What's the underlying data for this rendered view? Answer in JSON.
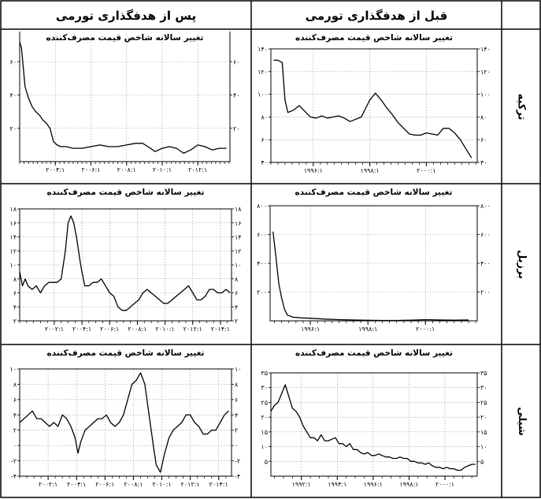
{
  "header": {
    "after": "پس از هدفگذاری تورمی",
    "before": "قبل از هدفگذاری تورمی"
  },
  "rows": [
    "ترکیه",
    "برزیل",
    "شیلی"
  ],
  "chart_data": [
    {
      "id": "turkey-after",
      "type": "line",
      "title": "تغییر سالانه شاخص قیمت مصرف‌کننده",
      "ylim": [
        0,
        80
      ],
      "yticks": [
        20,
        40,
        60,
        80
      ],
      "ytick_labels": [
        "۲۰",
        "۴۰",
        "۶۰",
        "۸۰"
      ],
      "xlim": [
        2002.0,
        2013.8
      ],
      "xticks": [
        2004,
        2006,
        2008,
        2010,
        2012
      ],
      "xtick_minor_step": 0.25,
      "xtick_labels": [
        "۲۰۰۴:۱",
        "۲۰۰۶:۱",
        "۲۰۰۸:۱",
        "۲۰۱۰:۱",
        "۲۰۱۲:۱"
      ],
      "x": [
        2002.0,
        2002.1,
        2002.3,
        2002.5,
        2002.7,
        2002.9,
        2003.1,
        2003.3,
        2003.5,
        2003.7,
        2003.9,
        2004.1,
        2004.3,
        2004.6,
        2005.0,
        2005.5,
        2006.0,
        2006.5,
        2007.0,
        2007.5,
        2008.0,
        2008.5,
        2008.9,
        2009.2,
        2009.6,
        2010.0,
        2010.4,
        2010.8,
        2011.2,
        2011.6,
        2012.0,
        2012.4,
        2012.8,
        2013.2,
        2013.6
      ],
      "values": [
        72,
        68,
        45,
        38,
        33,
        30,
        28,
        25,
        23,
        20,
        12,
        10,
        9,
        9,
        8,
        8,
        9,
        10,
        9,
        9,
        10,
        11,
        11,
        9,
        6,
        8,
        9,
        8,
        5,
        7,
        10,
        9,
        7,
        8,
        8
      ]
    },
    {
      "id": "turkey-before",
      "type": "line",
      "title": "تغییر سالانه شاخص قیمت مصرف‌کننده",
      "ylim": [
        40,
        140
      ],
      "yticks": [
        40,
        60,
        80,
        100,
        120,
        140
      ],
      "ytick_labels": [
        "۴۰",
        "۶۰",
        "۸۰",
        "۱۰۰",
        "۱۲۰",
        "۱۴۰"
      ],
      "xlim": [
        1994.5,
        2001.8
      ],
      "xticks": [
        1996,
        1998,
        2000
      ],
      "xtick_minor_step": 0.25,
      "xtick_labels": [
        "۱۹۹۶:۱",
        "۱۹۹۸:۱",
        "۲۰۰۰:۱"
      ],
      "x": [
        1994.6,
        1994.75,
        1994.9,
        1995.0,
        1995.1,
        1995.3,
        1995.5,
        1995.7,
        1995.9,
        1996.1,
        1996.3,
        1996.5,
        1996.7,
        1996.9,
        1997.1,
        1997.3,
        1997.5,
        1997.7,
        1997.9,
        1998.0,
        1998.2,
        1998.4,
        1998.6,
        1998.8,
        1999.0,
        1999.2,
        1999.4,
        1999.6,
        1999.8,
        2000.0,
        2000.2,
        2000.4,
        2000.6,
        2000.8,
        2001.0,
        2001.2,
        2001.4,
        2001.6
      ],
      "values": [
        130,
        130,
        128,
        95,
        84,
        86,
        90,
        85,
        80,
        79,
        81,
        79,
        80,
        81,
        79,
        76,
        78,
        80,
        90,
        95,
        101,
        95,
        88,
        82,
        75,
        70,
        65,
        64,
        64,
        66,
        65,
        64,
        70,
        70,
        66,
        60,
        52,
        44
      ]
    },
    {
      "id": "brazil-after",
      "type": "line",
      "title": "تغییر سالانه شاخص قیمت مصرف‌کننده",
      "ylim": [
        2,
        18
      ],
      "yticks": [
        2,
        4,
        6,
        8,
        10,
        12,
        14,
        16,
        18
      ],
      "ytick_labels": [
        "۲",
        "۴",
        "۶",
        "۸",
        "۱۰",
        "۱۲",
        "۱۴",
        "۱۶",
        "۱۸"
      ],
      "xlim": [
        1999.5,
        2014.8
      ],
      "xticks": [
        2002,
        2004,
        2006,
        2008,
        2010,
        2012,
        2014
      ],
      "xtick_minor_step": 0.5,
      "xtick_labels": [
        "۲۰۰۲:۱",
        "۲۰۰۴:۱",
        "۲۰۰۶:۱",
        "۲۰۰۸:۱",
        "۲۰۱۰:۱",
        "۲۰۱۲:۱",
        "۲۰۱۴:۱"
      ],
      "x": [
        1999.5,
        1999.7,
        1999.9,
        2000.1,
        2000.4,
        2000.7,
        2001.0,
        2001.3,
        2001.6,
        2001.9,
        2002.2,
        2002.5,
        2002.8,
        2003.0,
        2003.2,
        2003.4,
        2003.6,
        2003.9,
        2004.2,
        2004.5,
        2004.8,
        2005.1,
        2005.4,
        2005.7,
        2006.0,
        2006.3,
        2006.6,
        2006.9,
        2007.2,
        2007.5,
        2007.8,
        2008.1,
        2008.4,
        2008.7,
        2009.0,
        2009.3,
        2009.6,
        2009.9,
        2010.2,
        2010.5,
        2010.8,
        2011.1,
        2011.4,
        2011.7,
        2012.0,
        2012.3,
        2012.6,
        2012.9,
        2013.2,
        2013.5,
        2013.8,
        2014.1,
        2014.4,
        2014.7
      ],
      "values": [
        9,
        7,
        8,
        7,
        6.5,
        7,
        6,
        7,
        7.5,
        7.5,
        7.5,
        8,
        12,
        16,
        17,
        16,
        14,
        10,
        7,
        7,
        7.5,
        7.5,
        8,
        7,
        6,
        5.5,
        4,
        3.5,
        3.5,
        4,
        4.5,
        5,
        6,
        6.5,
        6,
        5.5,
        5,
        4.5,
        4.5,
        5,
        5.5,
        6,
        6.5,
        7,
        6,
        5,
        5,
        5.5,
        6.5,
        6.5,
        6,
        6,
        6.5,
        6
      ]
    },
    {
      "id": "brazil-before",
      "type": "line",
      "title": "تغییر سالانه شاخص قیمت مصرف‌کننده",
      "ylim": [
        0,
        800
      ],
      "yticks": [
        200,
        400,
        600,
        800
      ],
      "ytick_labels": [
        "۲۰۰",
        "۴۰۰",
        "۶۰۰",
        "۸۰۰"
      ],
      "xlim": [
        1994.6,
        2001.8
      ],
      "xticks": [
        1996,
        1998,
        2000
      ],
      "xtick_minor_step": 0.25,
      "xtick_labels": [
        "۱۹۹۶:۱",
        "۱۹۹۸:۱",
        "۲۰۰۰:۱"
      ],
      "x": [
        1994.7,
        1994.8,
        1994.9,
        1995.0,
        1995.1,
        1995.2,
        1995.4,
        1995.7,
        1996.0,
        1996.5,
        1997.0,
        1997.5,
        1998.0,
        1998.5,
        1999.0,
        1999.5,
        2000.0,
        2000.5,
        2001.0,
        2001.5
      ],
      "values": [
        620,
        450,
        260,
        160,
        80,
        40,
        25,
        20,
        18,
        12,
        8,
        6,
        4,
        3,
        3,
        5,
        8,
        6,
        5,
        6
      ]
    },
    {
      "id": "chile-after",
      "type": "line",
      "title": "تغییر سالانه شاخص قیمت مصرف‌کننده",
      "ylim": [
        -4,
        10
      ],
      "yticks": [
        -4,
        -2,
        0,
        2,
        4,
        6,
        8,
        10
      ],
      "ytick_labels": [
        "-۴",
        "-۲",
        "۰",
        "۲",
        "۴",
        "۶",
        "۸",
        "۱۰"
      ],
      "xlim": [
        2000.0,
        2014.9
      ],
      "xticks": [
        2002,
        2004,
        2006,
        2008,
        2010,
        2012,
        2014
      ],
      "xtick_minor_step": 0.5,
      "xtick_labels": [
        "۲۰۰۲:۱",
        "۲۰۰۴:۱",
        "۲۰۰۶:۱",
        "۲۰۰۸:۱",
        "۲۰۱۰:۱",
        "۲۰۱۲:۱",
        "۲۰۱۴:۱"
      ],
      "x": [
        2000.0,
        2000.3,
        2000.6,
        2000.9,
        2001.2,
        2001.5,
        2001.8,
        2002.1,
        2002.4,
        2002.7,
        2003.0,
        2003.3,
        2003.6,
        2003.9,
        2004.1,
        2004.3,
        2004.6,
        2004.9,
        2005.2,
        2005.5,
        2005.8,
        2006.1,
        2006.4,
        2006.7,
        2007.0,
        2007.3,
        2007.6,
        2007.9,
        2008.2,
        2008.5,
        2008.8,
        2009.1,
        2009.4,
        2009.6,
        2009.9,
        2010.2,
        2010.5,
        2010.8,
        2011.1,
        2011.4,
        2011.7,
        2012.0,
        2012.3,
        2012.6,
        2012.9,
        2013.2,
        2013.5,
        2013.8,
        2014.1,
        2014.4,
        2014.7
      ],
      "values": [
        3,
        3.5,
        4,
        4.5,
        3.5,
        3.5,
        3,
        2.5,
        3,
        2.5,
        4,
        3.5,
        2.5,
        1,
        -1,
        0.5,
        2,
        2.5,
        3,
        3.5,
        3.5,
        4,
        3,
        2.5,
        3,
        4,
        6,
        8,
        8.5,
        9.5,
        8,
        4,
        0,
        -2.5,
        -3.5,
        -1,
        1,
        2,
        2.5,
        3,
        4,
        4,
        3,
        2.5,
        1.5,
        1.5,
        2,
        2,
        3,
        4,
        4.5
      ]
    },
    {
      "id": "chile-before",
      "type": "line",
      "title": "تغییر سالانه شاخص قیمت مصرف‌کننده",
      "ylim": [
        0,
        35
      ],
      "yticks": [
        5,
        10,
        15,
        20,
        25,
        30,
        35
      ],
      "ytick_labels": [
        "۵",
        "۱۰",
        "۱۵",
        "۲۰",
        "۲۵",
        "۳۰",
        "۳۵"
      ],
      "xlim": [
        1990.3,
        2001.8
      ],
      "xticks": [
        1992,
        1994,
        1996,
        1998,
        2000
      ],
      "xtick_minor_step": 0.5,
      "xtick_labels": [
        "۱۹۹۲:۱",
        "۱۹۹۴:۱",
        "۱۹۹۶:۱",
        "۱۹۹۸:۱",
        "۲۰۰۰:۱"
      ],
      "x": [
        1990.3,
        1990.5,
        1990.7,
        1990.9,
        1991.1,
        1991.3,
        1991.5,
        1991.7,
        1991.9,
        1992.1,
        1992.3,
        1992.5,
        1992.7,
        1992.9,
        1993.1,
        1993.3,
        1993.5,
        1993.7,
        1993.9,
        1994.1,
        1994.3,
        1994.5,
        1994.7,
        1994.9,
        1995.1,
        1995.3,
        1995.5,
        1995.7,
        1995.9,
        1996.1,
        1996.3,
        1996.5,
        1996.7,
        1996.9,
        1997.1,
        1997.3,
        1997.5,
        1997.7,
        1997.9,
        1998.1,
        1998.3,
        1998.5,
        1998.7,
        1998.9,
        1999.1,
        1999.3,
        1999.5,
        1999.7,
        1999.9,
        2000.1,
        2000.3,
        2000.5,
        2000.7,
        2000.9,
        2001.1,
        2001.3,
        2001.5,
        2001.7
      ],
      "values": [
        22,
        24,
        25,
        28,
        31,
        27,
        23,
        22,
        20,
        17,
        15,
        13,
        13,
        12,
        14,
        12,
        12,
        12.5,
        13,
        11,
        11,
        10,
        11,
        9,
        9,
        8,
        7.5,
        8,
        7,
        7,
        7.5,
        7,
        6.5,
        6.5,
        6,
        6,
        6.5,
        6,
        6,
        5,
        5,
        4.5,
        4.5,
        4,
        4.5,
        3.5,
        3,
        3,
        2.5,
        3,
        2.5,
        2.5,
        2,
        2,
        3,
        3.5,
        4,
        4
      ]
    }
  ]
}
